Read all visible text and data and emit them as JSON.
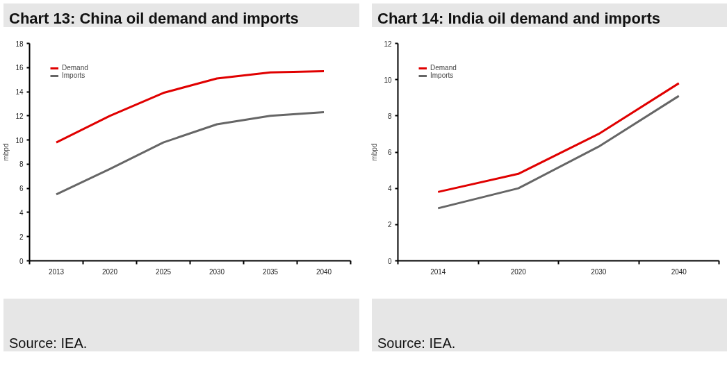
{
  "chart_data": [
    {
      "type": "line",
      "title": "Chart 13: China oil demand and imports",
      "ylabel": "mbpd",
      "categories": [
        "2013",
        "2020",
        "2025",
        "2030",
        "2035",
        "2040"
      ],
      "ylim": [
        0,
        18
      ],
      "yticks": [
        0,
        2,
        4,
        6,
        8,
        10,
        12,
        14,
        16,
        18
      ],
      "grid": false,
      "legend": "top left",
      "annotations": [
        "Source: IEA."
      ],
      "series": [
        {
          "name": "Demand",
          "color": "#e00000",
          "values": [
            9.8,
            12.0,
            13.9,
            15.1,
            15.6,
            15.7
          ]
        },
        {
          "name": "Imports",
          "color": "#666666",
          "values": [
            5.5,
            7.6,
            9.8,
            11.3,
            12.0,
            12.3
          ]
        }
      ]
    },
    {
      "type": "line",
      "title": "Chart 14: India oil demand and imports",
      "ylabel": "mbpd",
      "categories": [
        "2014",
        "2020",
        "2030",
        "2040"
      ],
      "ylim": [
        0,
        12
      ],
      "yticks": [
        0,
        2,
        4,
        6,
        8,
        10,
        12
      ],
      "grid": false,
      "legend": "top left",
      "annotations": [
        "Source: IEA."
      ],
      "series": [
        {
          "name": "Demand",
          "color": "#e00000",
          "values": [
            3.8,
            4.8,
            7.0,
            9.8
          ]
        },
        {
          "name": "Imports",
          "color": "#666666",
          "values": [
            2.9,
            4.0,
            6.3,
            9.1
          ]
        }
      ]
    }
  ]
}
